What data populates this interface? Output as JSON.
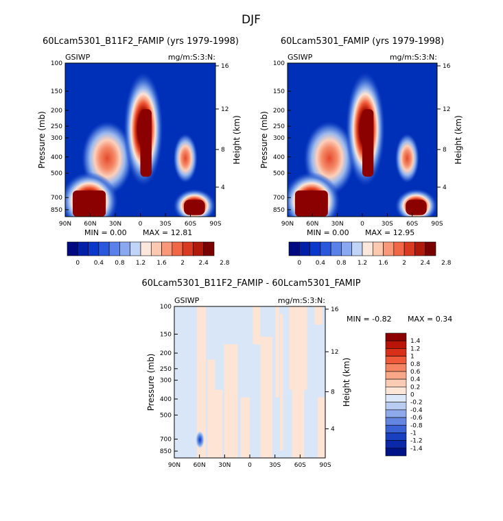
{
  "season_title": "DJF",
  "colors": {
    "background": "#0030b8",
    "warm_core": "#8b0000"
  },
  "chart_data": [
    {
      "type": "heatmap",
      "id": "model_a",
      "title": "60Lcam5301_B11F2_FAMIP (yrs 1979-1998)",
      "variable": "GSIWP",
      "units": "mg/m:S:3:N:",
      "ylabel": "Pressure (mb)",
      "ylabel_right": "Height (km)",
      "x_ticks": [
        "90N",
        "60N",
        "30N",
        "0",
        "30S",
        "60S",
        "90S"
      ],
      "y_ticks": [
        "100",
        "150",
        "200",
        "250",
        "300",
        "400",
        "500",
        "700",
        "850"
      ],
      "y_right_ticks": [
        "16",
        "12",
        "8",
        "4"
      ],
      "min_label": "MIN =    0.00",
      "max_label": "MAX =    12.81",
      "min": 0.0,
      "max": 12.81,
      "colorbar_labels": [
        "0",
        "0.4",
        "0.8",
        "1.2",
        "1.6",
        "2",
        "2.4",
        "2.8"
      ]
    },
    {
      "type": "heatmap",
      "id": "model_b",
      "title": "60Lcam5301_FAMIP (yrs 1979-1998)",
      "variable": "GSIWP",
      "units": "mg/m:S:3:N:",
      "ylabel": "Pressure (mb)",
      "ylabel_right": "Height (km)",
      "x_ticks": [
        "90N",
        "60N",
        "30N",
        "0",
        "30S",
        "60S",
        "90S"
      ],
      "y_ticks": [
        "100",
        "150",
        "200",
        "250",
        "300",
        "400",
        "500",
        "700",
        "850"
      ],
      "y_right_ticks": [
        "16",
        "12",
        "8",
        "4"
      ],
      "min_label": "MIN =    0.00",
      "max_label": "MAX =    12.95",
      "min": 0.0,
      "max": 12.95,
      "colorbar_labels": [
        "0",
        "0.4",
        "0.8",
        "1.2",
        "1.6",
        "2",
        "2.4",
        "2.8"
      ]
    },
    {
      "type": "heatmap",
      "id": "difference",
      "title": "60Lcam5301_B11F2_FAMIP - 60Lcam5301_FAMIP",
      "variable": "GSIWP",
      "units": "mg/m:S:3:N:",
      "ylabel": "Pressure (mb)",
      "ylabel_right": "Height (km)",
      "x_ticks": [
        "90N",
        "60N",
        "30N",
        "0",
        "30S",
        "60S",
        "90S"
      ],
      "y_ticks": [
        "100",
        "150",
        "200",
        "250",
        "300",
        "400",
        "500",
        "700",
        "850"
      ],
      "y_right_ticks": [
        "16",
        "12",
        "8",
        "4"
      ],
      "min_label": "MIN =   -0.82",
      "max_label": "MAX =    0.34",
      "min": -0.82,
      "max": 0.34,
      "colorbar_labels": [
        "1.4",
        "1.2",
        "1",
        "0.8",
        "0.6",
        "0.4",
        "0.2",
        "0",
        "-0.2",
        "-0.4",
        "-0.6",
        "-0.8",
        "-1",
        "-1.2",
        "-1.4"
      ]
    }
  ]
}
